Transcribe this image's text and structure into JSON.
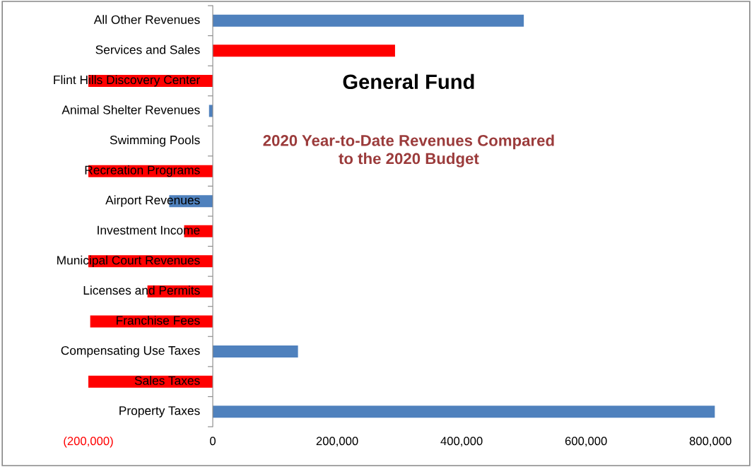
{
  "chart_data": {
    "type": "bar",
    "orientation": "horizontal",
    "title": "General Fund",
    "subtitle": "2020 Year-to-Date Revenues Compared to the 2020 Budget",
    "categories": [
      "All Other Revenues",
      "Services and Sales",
      "Flint Hills Discovery Center",
      "Animal Shelter Revenues",
      "Swimming Pools",
      "Recreation Programs",
      "Airport Revenues",
      "Investment Income",
      "Municipal Court Revenues",
      "Licenses and Permits",
      "Franchise Fees",
      "Compensating Use Taxes",
      "Sales Taxes",
      "Property Taxes"
    ],
    "values": [
      500000,
      293000,
      -200000,
      -6000,
      0,
      -200000,
      -70000,
      -46000,
      -200000,
      -105000,
      -197000,
      137000,
      -200000,
      807000
    ],
    "colors": [
      "#4f81bd",
      "#ff0000",
      "#ff0000",
      "#4f81bd",
      "#4f81bd",
      "#ff0000",
      "#4f81bd",
      "#ff0000",
      "#ff0000",
      "#ff0000",
      "#ff0000",
      "#4f81bd",
      "#ff0000",
      "#4f81bd"
    ],
    "xlim": [
      -200000,
      810000
    ],
    "xticks": [
      {
        "value": -200000,
        "label": "(200,000)"
      },
      {
        "value": 0,
        "label": "0"
      },
      {
        "value": 200000,
        "label": "200,000"
      },
      {
        "value": 400000,
        "label": "400,000"
      },
      {
        "value": 600000,
        "label": "600,000"
      },
      {
        "value": 800000,
        "label": "800,000"
      }
    ],
    "grid": false,
    "legend": false
  }
}
